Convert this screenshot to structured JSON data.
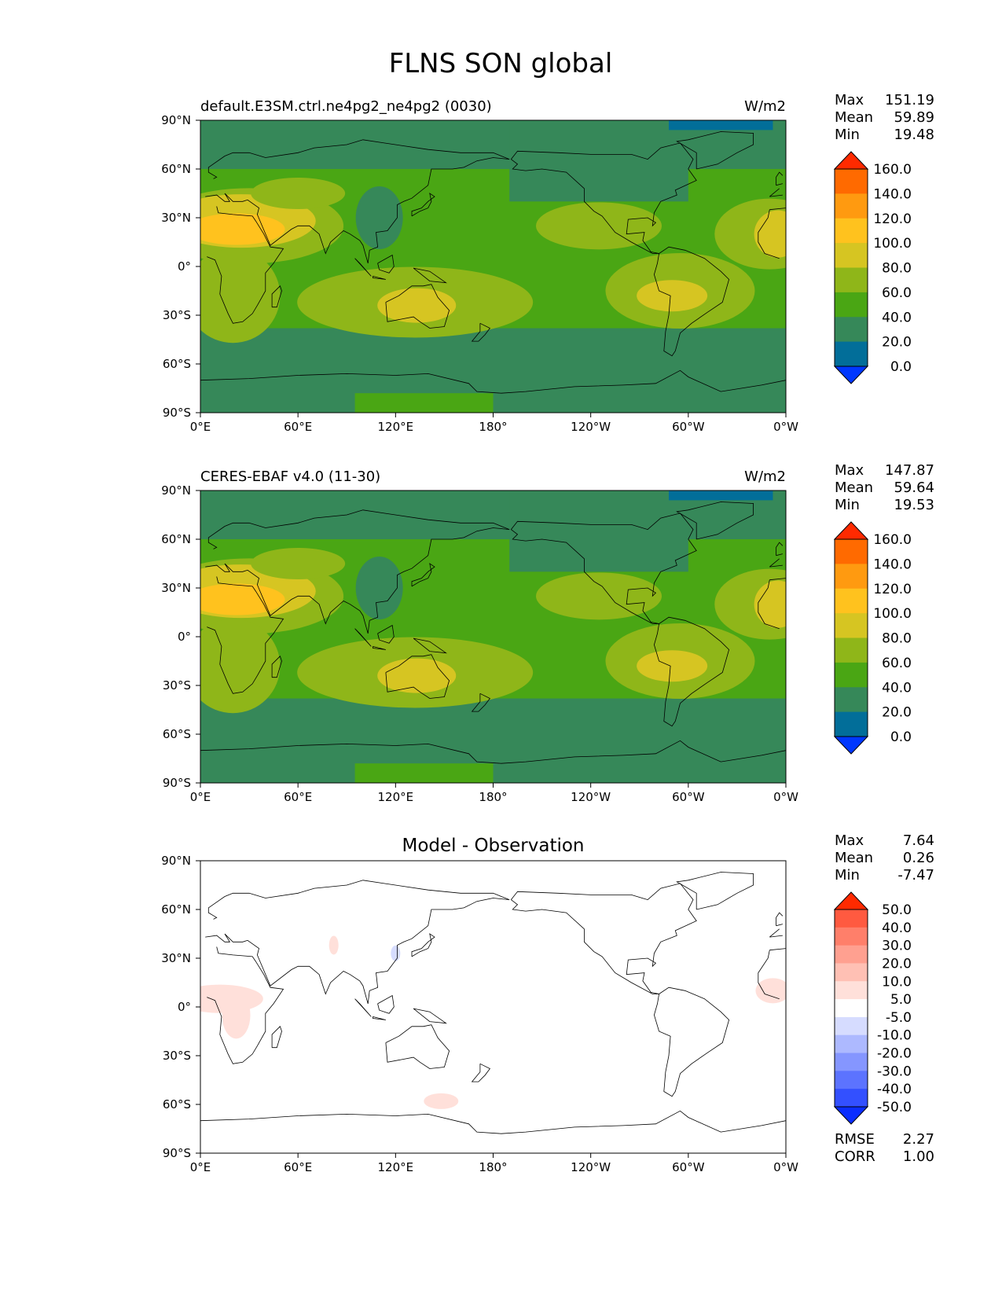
{
  "figure": {
    "title": "FLNS SON global"
  },
  "chart_data": [
    {
      "type": "heatmap",
      "title": "default.E3SM.ctrl.ne4pg2_ne4pg2 (0030)",
      "units": "W/m2",
      "x_ticks": [
        "0°E",
        "60°E",
        "120°E",
        "180°",
        "120°W",
        "60°W",
        "0°W"
      ],
      "y_ticks": [
        "90°N",
        "60°N",
        "30°N",
        "0°",
        "30°S",
        "60°S",
        "90°S"
      ],
      "xlim": [
        0,
        360
      ],
      "ylim": [
        -90,
        90
      ],
      "stats": [
        {
          "label": "Max",
          "value": "151.19"
        },
        {
          "label": "Mean",
          "value": "59.89"
        },
        {
          "label": "Min",
          "value": "19.48"
        }
      ],
      "colorbar": {
        "levels": [
          "160.0",
          "140.0",
          "120.0",
          "100.0",
          "80.0",
          "60.0",
          "40.0",
          "20.0",
          "0.0"
        ],
        "colors": [
          "#ff2a00",
          "#ff6a00",
          "#ff9a10",
          "#ffc21e",
          "#d6c522",
          "#8fb619",
          "#4aa614",
          "#368859",
          "#026e99",
          "#0037ff"
        ]
      }
    },
    {
      "type": "heatmap",
      "title": "CERES-EBAF v4.0 (11-30)",
      "units": "W/m2",
      "x_ticks": [
        "0°E",
        "60°E",
        "120°E",
        "180°",
        "120°W",
        "60°W",
        "0°W"
      ],
      "y_ticks": [
        "90°N",
        "60°N",
        "30°N",
        "0°",
        "30°S",
        "60°S",
        "90°S"
      ],
      "xlim": [
        0,
        360
      ],
      "ylim": [
        -90,
        90
      ],
      "stats": [
        {
          "label": "Max",
          "value": "147.87"
        },
        {
          "label": "Mean",
          "value": "59.64"
        },
        {
          "label": "Min",
          "value": "19.53"
        }
      ],
      "colorbar": {
        "levels": [
          "160.0",
          "140.0",
          "120.0",
          "100.0",
          "80.0",
          "60.0",
          "40.0",
          "20.0",
          "0.0"
        ],
        "colors": [
          "#ff2a00",
          "#ff6a00",
          "#ff9a10",
          "#ffc21e",
          "#d6c522",
          "#8fb619",
          "#4aa614",
          "#368859",
          "#026e99",
          "#0037ff"
        ]
      }
    },
    {
      "type": "heatmap",
      "title": "Model - Observation",
      "units": "",
      "x_ticks": [
        "0°E",
        "60°E",
        "120°E",
        "180°",
        "120°W",
        "60°W",
        "0°W"
      ],
      "y_ticks": [
        "90°N",
        "60°N",
        "30°N",
        "0°",
        "30°S",
        "60°S",
        "90°S"
      ],
      "xlim": [
        0,
        360
      ],
      "ylim": [
        -90,
        90
      ],
      "stats": [
        {
          "label": "Max",
          "value": "7.64"
        },
        {
          "label": "Mean",
          "value": "0.26"
        },
        {
          "label": "Min",
          "value": "-7.47"
        }
      ],
      "metrics": [
        {
          "label": "RMSE",
          "value": "2.27"
        },
        {
          "label": "CORR",
          "value": "1.00"
        }
      ],
      "colorbar": {
        "levels": [
          "50.0",
          "40.0",
          "30.0",
          "20.0",
          "10.0",
          "5.0",
          "-5.0",
          "-10.0",
          "-20.0",
          "-30.0",
          "-40.0",
          "-50.0"
        ],
        "colors": [
          "#ff2a00",
          "#ff5a40",
          "#ff7f6a",
          "#ffa090",
          "#ffc0b4",
          "#ffe0da",
          "#ffffff",
          "#d6dcff",
          "#adb9ff",
          "#8596ff",
          "#5c73ff",
          "#3350ff",
          "#0a2dff"
        ]
      }
    }
  ]
}
